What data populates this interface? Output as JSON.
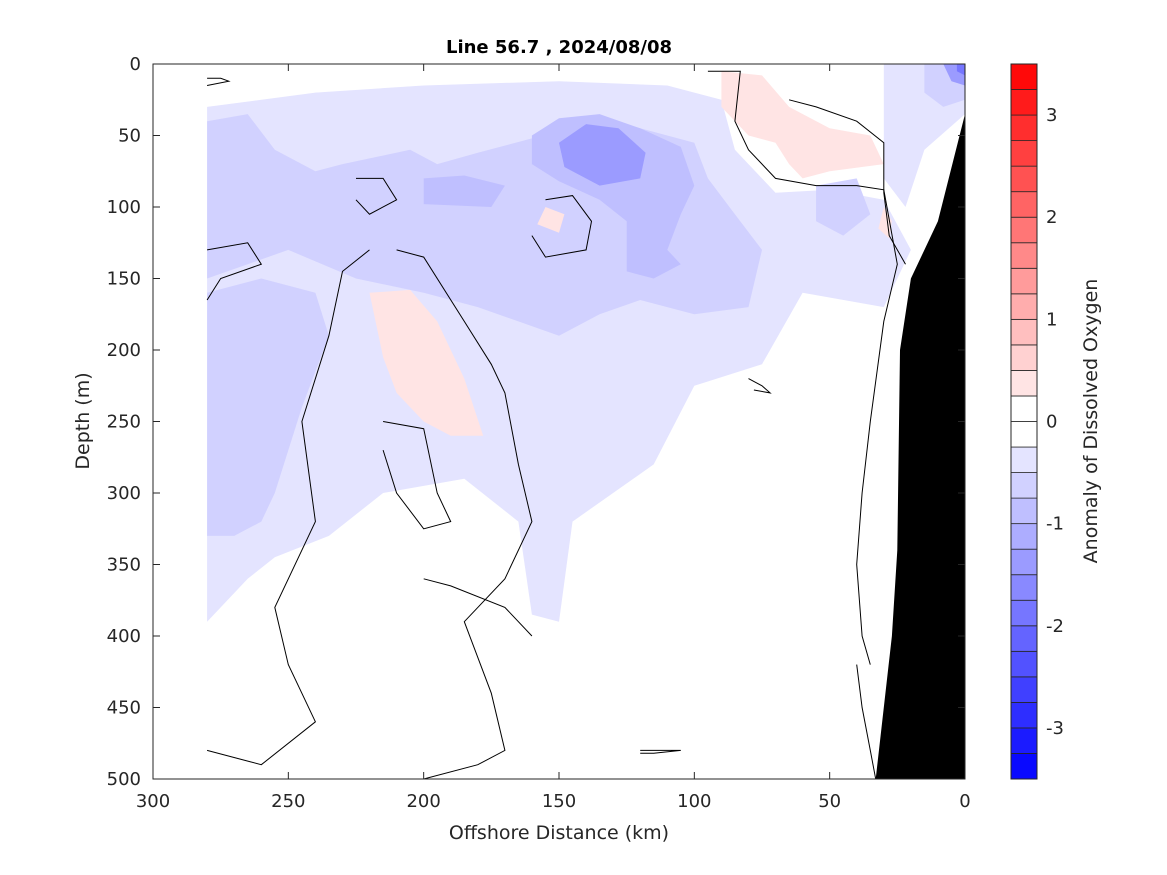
{
  "chart_data": {
    "type": "heatmap",
    "title": "Line 56.7 , 2024/08/08",
    "xlabel": "Offshore Distance (km)",
    "ylabel": "Depth (m)",
    "colorbar_label": "Anomaly of Dissolved Oxygen",
    "xlim": [
      300,
      0
    ],
    "ylim": [
      500,
      0
    ],
    "x_ticks": [
      300,
      250,
      200,
      150,
      100,
      50,
      0
    ],
    "y_ticks": [
      0,
      50,
      100,
      150,
      200,
      250,
      300,
      350,
      400,
      450,
      500
    ],
    "clim": [
      -3.5,
      3.5
    ],
    "colorbar_ticks": [
      -3,
      -2,
      -1,
      0,
      1,
      2,
      3
    ],
    "colorbar_levels": 28,
    "colors": {
      "negative_max": "#0000ff",
      "positive_max": "#ff0000",
      "neutral": "#ffffff",
      "bathymetry": "#000000",
      "contour_line": "#000000"
    },
    "grid": false,
    "data_extent_x": [
      0,
      280
    ],
    "bathymetry": [
      [
        33,
        500
      ],
      [
        27,
        400
      ],
      [
        25,
        340
      ],
      [
        24,
        200
      ],
      [
        20,
        150
      ],
      [
        10,
        110
      ],
      [
        0,
        35
      ]
    ],
    "anomaly_regions": [
      {
        "value": -0.3,
        "points": [
          [
            280,
            30
          ],
          [
            240,
            20
          ],
          [
            200,
            15
          ],
          [
            150,
            12
          ],
          [
            110,
            15
          ],
          [
            90,
            25
          ],
          [
            85,
            60
          ],
          [
            70,
            90
          ],
          [
            50,
            88
          ],
          [
            30,
            95
          ],
          [
            20,
            130
          ],
          [
            30,
            170
          ],
          [
            60,
            160
          ],
          [
            75,
            210
          ],
          [
            100,
            225
          ],
          [
            115,
            280
          ],
          [
            130,
            300
          ],
          [
            145,
            320
          ],
          [
            150,
            390
          ],
          [
            160,
            385
          ],
          [
            165,
            320
          ],
          [
            185,
            290
          ],
          [
            215,
            300
          ],
          [
            235,
            330
          ],
          [
            255,
            345
          ],
          [
            265,
            360
          ],
          [
            280,
            390
          ]
        ]
      },
      {
        "value": -0.3,
        "points": [
          [
            30,
            0
          ],
          [
            0,
            0
          ],
          [
            0,
            35
          ],
          [
            15,
            60
          ],
          [
            22,
            100
          ],
          [
            30,
            80
          ]
        ]
      },
      {
        "value": -0.6,
        "points": [
          [
            280,
            40
          ],
          [
            265,
            35
          ],
          [
            255,
            60
          ],
          [
            240,
            75
          ],
          [
            230,
            70
          ],
          [
            205,
            60
          ],
          [
            195,
            70
          ],
          [
            180,
            62
          ],
          [
            160,
            52
          ],
          [
            140,
            40
          ],
          [
            120,
            45
          ],
          [
            100,
            55
          ],
          [
            95,
            80
          ],
          [
            85,
            105
          ],
          [
            75,
            130
          ],
          [
            80,
            170
          ],
          [
            100,
            175
          ],
          [
            120,
            165
          ],
          [
            135,
            175
          ],
          [
            150,
            190
          ],
          [
            165,
            180
          ],
          [
            180,
            170
          ],
          [
            200,
            160
          ],
          [
            225,
            150
          ],
          [
            250,
            130
          ],
          [
            265,
            140
          ],
          [
            280,
            150
          ]
        ]
      },
      {
        "value": -0.6,
        "points": [
          [
            55,
            85
          ],
          [
            40,
            80
          ],
          [
            35,
            105
          ],
          [
            45,
            120
          ],
          [
            55,
            110
          ]
        ]
      },
      {
        "value": -0.6,
        "points": [
          [
            280,
            160
          ],
          [
            260,
            150
          ],
          [
            240,
            160
          ],
          [
            235,
            190
          ],
          [
            245,
            240
          ],
          [
            255,
            300
          ],
          [
            260,
            320
          ],
          [
            270,
            330
          ],
          [
            280,
            330
          ]
        ]
      },
      {
        "value": -0.6,
        "points": [
          [
            15,
            0
          ],
          [
            0,
            0
          ],
          [
            0,
            25
          ],
          [
            8,
            30
          ],
          [
            15,
            20
          ]
        ]
      },
      {
        "value": -1.0,
        "points": [
          [
            200,
            80
          ],
          [
            185,
            78
          ],
          [
            170,
            85
          ],
          [
            175,
            100
          ],
          [
            200,
            98
          ]
        ]
      },
      {
        "value": -1.0,
        "points": [
          [
            160,
            50
          ],
          [
            150,
            38
          ],
          [
            135,
            35
          ],
          [
            120,
            45
          ],
          [
            105,
            58
          ],
          [
            100,
            85
          ],
          [
            105,
            105
          ],
          [
            110,
            130
          ],
          [
            105,
            140
          ],
          [
            115,
            150
          ],
          [
            125,
            145
          ],
          [
            125,
            110
          ],
          [
            135,
            95
          ],
          [
            150,
            82
          ],
          [
            160,
            70
          ]
        ]
      },
      {
        "value": -1.4,
        "points": [
          [
            150,
            55
          ],
          [
            140,
            42
          ],
          [
            128,
            45
          ],
          [
            118,
            62
          ],
          [
            120,
            80
          ],
          [
            135,
            85
          ],
          [
            148,
            72
          ]
        ]
      },
      {
        "value": -1.4,
        "points": [
          [
            8,
            0
          ],
          [
            0,
            0
          ],
          [
            0,
            15
          ],
          [
            5,
            12
          ]
        ]
      },
      {
        "value": -2.0,
        "points": [
          [
            3,
            0
          ],
          [
            0,
            0
          ],
          [
            0,
            8
          ],
          [
            3,
            5
          ]
        ]
      },
      {
        "value": 0.3,
        "points": [
          [
            220,
            160
          ],
          [
            205,
            158
          ],
          [
            195,
            180
          ],
          [
            185,
            220
          ],
          [
            178,
            260
          ],
          [
            190,
            260
          ],
          [
            200,
            250
          ],
          [
            210,
            230
          ],
          [
            215,
            205
          ]
        ]
      },
      {
        "value": 0.3,
        "points": [
          [
            155,
            100
          ],
          [
            148,
            105
          ],
          [
            150,
            118
          ],
          [
            158,
            112
          ]
        ]
      },
      {
        "value": 0.3,
        "points": [
          [
            90,
            5
          ],
          [
            75,
            8
          ],
          [
            65,
            30
          ],
          [
            50,
            45
          ],
          [
            35,
            50
          ],
          [
            30,
            70
          ],
          [
            50,
            75
          ],
          [
            60,
            80
          ],
          [
            65,
            70
          ],
          [
            70,
            55
          ],
          [
            80,
            50
          ],
          [
            90,
            30
          ]
        ]
      },
      {
        "value": 0.3,
        "points": [
          [
            30,
            100
          ],
          [
            27,
            110
          ],
          [
            28,
            122
          ],
          [
            32,
            115
          ]
        ]
      }
    ],
    "zero_contours": [
      [
        [
          95,
          5
        ],
        [
          83,
          5
        ],
        [
          85,
          40
        ],
        [
          80,
          60
        ],
        [
          70,
          80
        ],
        [
          55,
          85
        ],
        [
          40,
          85
        ],
        [
          30,
          88
        ],
        [
          25,
          140
        ],
        [
          30,
          180
        ],
        [
          35,
          250
        ],
        [
          38,
          300
        ],
        [
          40,
          350
        ],
        [
          38,
          400
        ],
        [
          35,
          420
        ]
      ],
      [
        [
          280,
          10
        ],
        [
          275,
          10
        ],
        [
          272,
          12
        ],
        [
          280,
          15
        ]
      ],
      [
        [
          65,
          25
        ],
        [
          55,
          30
        ],
        [
          40,
          40
        ],
        [
          30,
          55
        ],
        [
          30,
          90
        ],
        [
          28,
          120
        ],
        [
          22,
          140
        ]
      ],
      [
        [
          225,
          80
        ],
        [
          215,
          80
        ],
        [
          210,
          95
        ],
        [
          220,
          105
        ],
        [
          225,
          95
        ]
      ],
      [
        [
          155,
          95
        ],
        [
          145,
          92
        ],
        [
          138,
          110
        ],
        [
          140,
          130
        ],
        [
          155,
          135
        ],
        [
          160,
          120
        ]
      ],
      [
        [
          280,
          130
        ],
        [
          265,
          125
        ],
        [
          260,
          140
        ],
        [
          275,
          150
        ],
        [
          280,
          165
        ]
      ],
      [
        [
          210,
          130
        ],
        [
          200,
          135
        ],
        [
          185,
          180
        ],
        [
          175,
          210
        ],
        [
          170,
          230
        ],
        [
          165,
          280
        ],
        [
          160,
          320
        ],
        [
          170,
          360
        ],
        [
          185,
          390
        ],
        [
          175,
          440
        ],
        [
          170,
          480
        ],
        [
          180,
          490
        ],
        [
          200,
          500
        ]
      ],
      [
        [
          220,
          130
        ],
        [
          230,
          145
        ],
        [
          235,
          190
        ],
        [
          245,
          250
        ],
        [
          240,
          320
        ],
        [
          255,
          380
        ],
        [
          250,
          420
        ],
        [
          240,
          460
        ],
        [
          260,
          490
        ],
        [
          280,
          480
        ]
      ],
      [
        [
          215,
          250
        ],
        [
          200,
          255
        ],
        [
          195,
          300
        ],
        [
          190,
          320
        ],
        [
          200,
          325
        ],
        [
          210,
          300
        ],
        [
          215,
          270
        ]
      ],
      [
        [
          80,
          220
        ],
        [
          75,
          225
        ],
        [
          72,
          230
        ],
        [
          78,
          228
        ]
      ],
      [
        [
          200,
          360
        ],
        [
          190,
          365
        ],
        [
          170,
          380
        ],
        [
          160,
          400
        ]
      ],
      [
        [
          120,
          480
        ],
        [
          105,
          480
        ],
        [
          115,
          482
        ],
        [
          120,
          482
        ]
      ],
      [
        [
          40,
          420
        ],
        [
          38,
          450
        ],
        [
          35,
          480
        ],
        [
          33,
          500
        ]
      ]
    ]
  }
}
